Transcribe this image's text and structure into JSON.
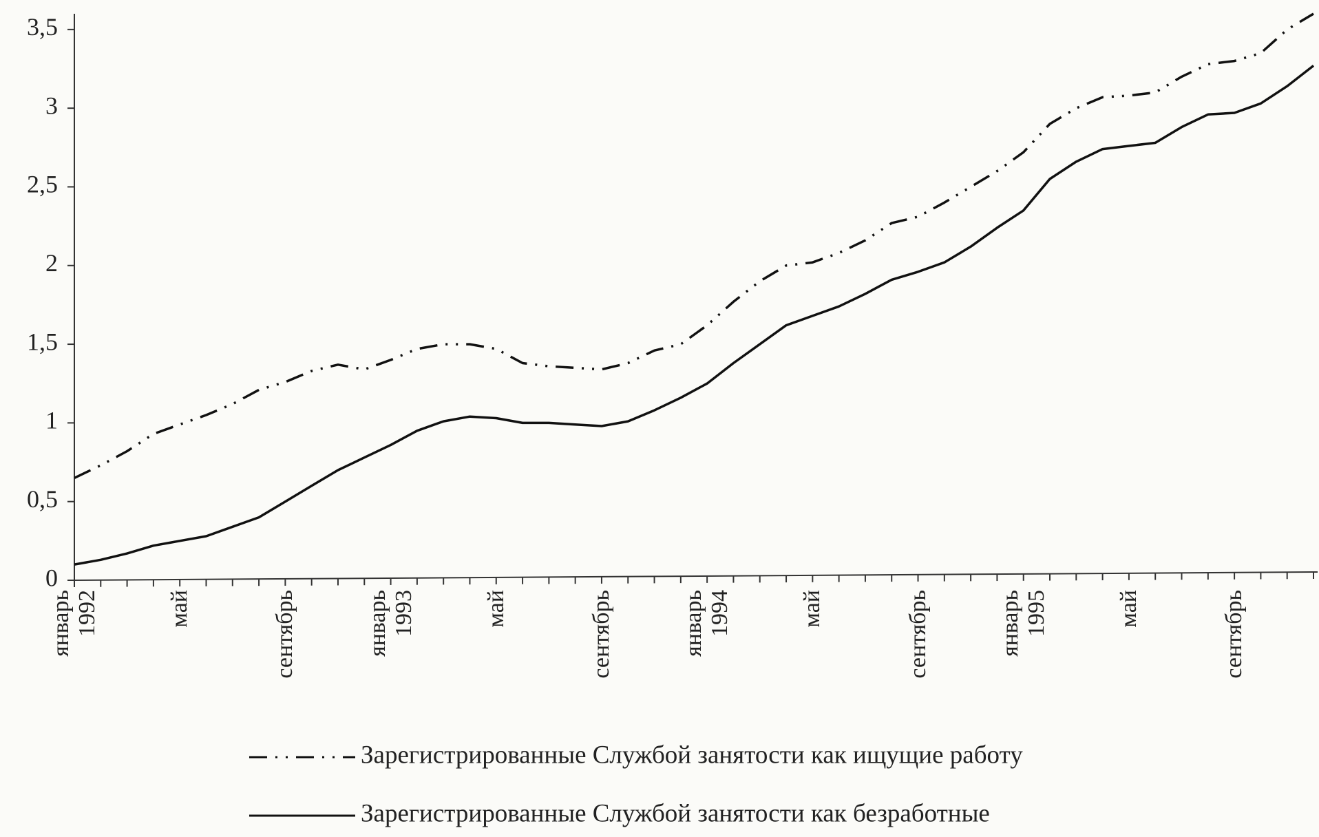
{
  "chart_data": {
    "type": "line",
    "categories": [
      "январь\n1992",
      null,
      null,
      null,
      "май",
      null,
      null,
      null,
      "сентябрь",
      null,
      null,
      null,
      "январь\n1993",
      null,
      null,
      null,
      "май",
      null,
      null,
      null,
      "сентябрь",
      null,
      null,
      null,
      "январь\n1994",
      null,
      null,
      null,
      "май",
      null,
      null,
      null,
      "сентябрь",
      null,
      null,
      null,
      "январь\n1995",
      null,
      null,
      null,
      "май",
      null,
      null,
      null,
      "сентябрь",
      null,
      null,
      null
    ],
    "series": [
      {
        "name": "Зарегистрированные Службой занятости как ищущие работу",
        "color": "#111111",
        "linestyle": "dashdot",
        "values": [
          0.65,
          0.73,
          0.82,
          0.93,
          0.99,
          1.05,
          1.12,
          1.21,
          1.26,
          1.33,
          1.37,
          1.34,
          1.4,
          1.47,
          1.5,
          1.5,
          1.47,
          1.38,
          1.36,
          1.35,
          1.34,
          1.38,
          1.46,
          1.5,
          1.62,
          1.77,
          1.9,
          2.0,
          2.02,
          2.08,
          2.16,
          2.27,
          2.31,
          2.4,
          2.5,
          2.6,
          2.72,
          2.9,
          3.0,
          3.07,
          3.08,
          3.1,
          3.2,
          3.28,
          3.3,
          3.35,
          3.5,
          3.6
        ]
      },
      {
        "name": "Зарегистрированные Службой занятости как безработные",
        "color": "#111111",
        "linestyle": "solid",
        "values": [
          0.1,
          0.13,
          0.17,
          0.22,
          0.25,
          0.28,
          0.34,
          0.4,
          0.5,
          0.6,
          0.7,
          0.78,
          0.86,
          0.95,
          1.01,
          1.04,
          1.03,
          1.0,
          1.0,
          0.99,
          0.98,
          1.01,
          1.08,
          1.16,
          1.25,
          1.38,
          1.5,
          1.62,
          1.68,
          1.74,
          1.82,
          1.91,
          1.96,
          2.02,
          2.12,
          2.24,
          2.35,
          2.55,
          2.66,
          2.74,
          2.76,
          2.78,
          2.88,
          2.96,
          2.97,
          3.03,
          3.14,
          3.27
        ]
      }
    ],
    "ylim": [
      0,
      3.6
    ],
    "yticks": [
      0,
      {
        "value": 0.5,
        "label": "0,5"
      },
      1,
      {
        "value": 1.5,
        "label": "1,5"
      },
      2,
      {
        "value": 2.5,
        "label": "2,5"
      },
      3,
      {
        "value": 3.5,
        "label": "3,5"
      }
    ],
    "grid": false,
    "legend": "bottom"
  }
}
